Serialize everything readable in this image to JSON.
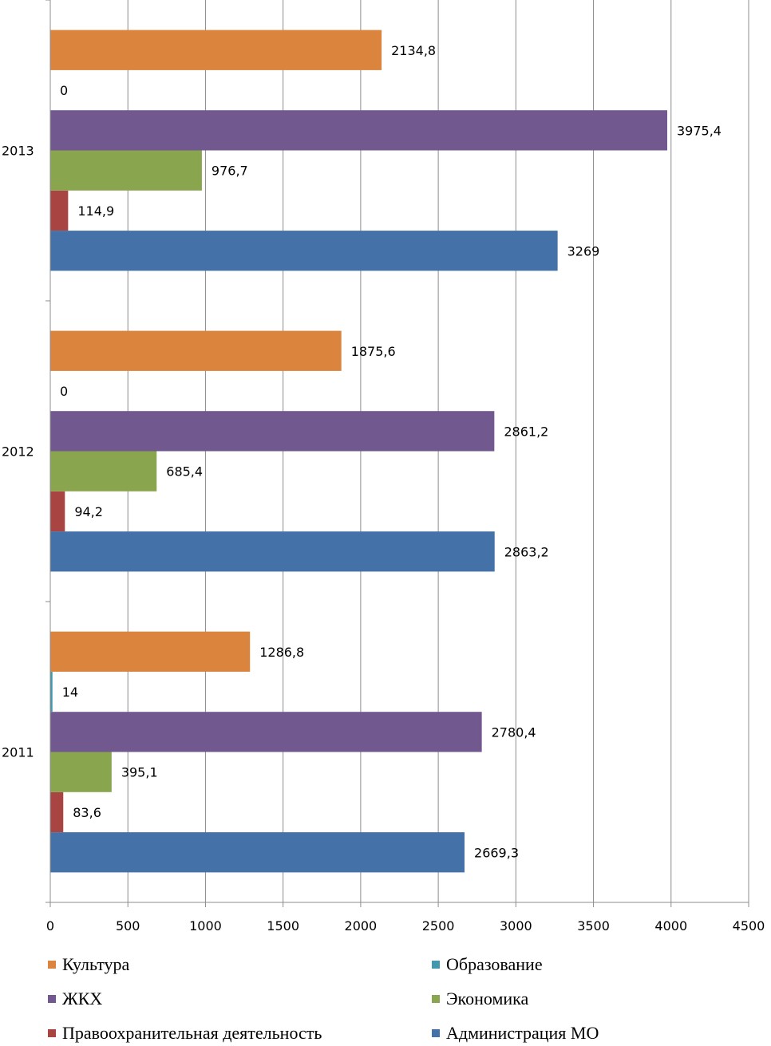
{
  "chart_data": {
    "type": "bar",
    "orientation": "horizontal",
    "categories": [
      "2011",
      "2012",
      "2013"
    ],
    "series": [
      {
        "name": "Администрация МО",
        "color": "#4472A8",
        "values": [
          2669.3,
          2863.2,
          3269
        ],
        "labels": [
          "2669,3",
          "2863,2",
          "3269"
        ]
      },
      {
        "name": "Правоохранительная деятельность",
        "color": "#A84542",
        "values": [
          83.6,
          94.2,
          114.9
        ],
        "labels": [
          "83,6",
          "94,2",
          "114,9"
        ]
      },
      {
        "name": "Экономика",
        "color": "#89A54E",
        "values": [
          395.1,
          685.4,
          976.7
        ],
        "labels": [
          "395,1",
          "685,4",
          "976,7"
        ]
      },
      {
        "name": "ЖКХ",
        "color": "#71588F",
        "values": [
          2780.4,
          2861.2,
          3975.4
        ],
        "labels": [
          "2780,4",
          "2861,2",
          "3975,4"
        ]
      },
      {
        "name": "Образование",
        "color": "#4198AF",
        "values": [
          14,
          0,
          0
        ],
        "labels": [
          "14",
          "0",
          "0"
        ]
      },
      {
        "name": "Культура",
        "color": "#DB843D",
        "values": [
          1286.8,
          1875.6,
          2134.8
        ],
        "labels": [
          "1286,8",
          "1875,6",
          "2134,8"
        ]
      }
    ],
    "xlim": [
      0,
      4500
    ],
    "xticks": [
      0,
      500,
      1000,
      1500,
      2000,
      2500,
      3000,
      3500,
      4000,
      4500
    ],
    "grid": true,
    "legend_position": "bottom",
    "title": "",
    "xlabel": "",
    "ylabel": ""
  },
  "legend": {
    "items": [
      {
        "label": "Культура",
        "color": "#DB843D"
      },
      {
        "label": "Образование",
        "color": "#4198AF"
      },
      {
        "label": "ЖКХ",
        "color": "#71588F"
      },
      {
        "label": "Экономика",
        "color": "#89A54E"
      },
      {
        "label": "Правоохранительная деятельность",
        "color": "#A84542"
      },
      {
        "label": "Администрация МО",
        "color": "#4472A8"
      }
    ]
  }
}
